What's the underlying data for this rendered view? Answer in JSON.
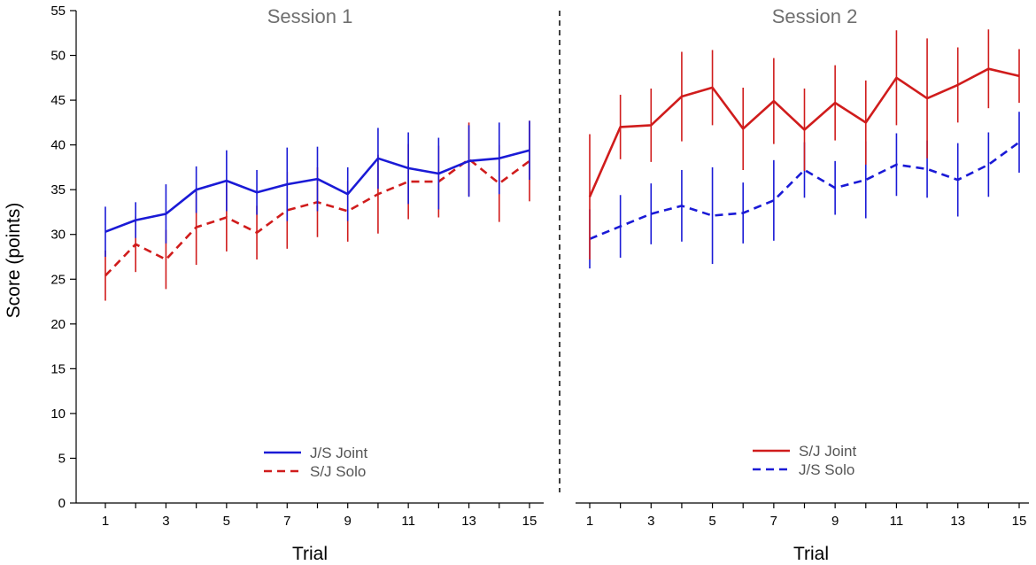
{
  "chart_data": {
    "type": "line",
    "ylabel": "Score (points)",
    "ylim": [
      0,
      55
    ],
    "yticks": [
      "0",
      "5",
      "10",
      "15",
      "20",
      "25",
      "30",
      "35",
      "40",
      "45",
      "50",
      "55"
    ],
    "xlim": [
      0.5,
      15.5
    ],
    "x": [
      1,
      2,
      3,
      4,
      5,
      6,
      7,
      8,
      9,
      10,
      11,
      12,
      13,
      14,
      15
    ],
    "xticks": [
      "1",
      "3",
      "5",
      "7",
      "9",
      "11",
      "13",
      "15"
    ],
    "colors": {
      "red": "#d01c1c",
      "blue": "#1a1ad6",
      "divider": "#000000"
    },
    "panels": [
      {
        "title": "Session 1",
        "xlabel": "Trial",
        "legend": [
          {
            "label": "J/S Joint",
            "style": "solid",
            "color": "blue"
          },
          {
            "label": "S/J Solo",
            "style": "dashed",
            "color": "red"
          }
        ],
        "series": [
          {
            "name": "S/J Solo",
            "color": "red",
            "dashed": true,
            "values": [
              25.4,
              28.9,
              27.2,
              30.8,
              31.9,
              30.2,
              32.7,
              33.6,
              32.6,
              34.5,
              35.9,
              35.9,
              38.4,
              35.7,
              38.2
            ],
            "errors": [
              2.8,
              3.1,
              3.3,
              4.2,
              3.8,
              3.0,
              4.3,
              3.9,
              3.4,
              4.4,
              4.2,
              4.0,
              4.1,
              4.3,
              4.5
            ]
          },
          {
            "name": "J/S Joint",
            "color": "blue",
            "dashed": false,
            "values": [
              30.3,
              31.6,
              32.3,
              35.0,
              36.0,
              34.7,
              35.6,
              36.2,
              34.5,
              38.5,
              37.4,
              36.8,
              38.2,
              38.5,
              39.4
            ],
            "errors": [
              2.8,
              2.0,
              3.3,
              2.6,
              3.4,
              2.5,
              4.1,
              3.6,
              3.0,
              3.4,
              4.0,
              4.0,
              4.0,
              4.0,
              3.3
            ]
          }
        ]
      },
      {
        "title": "Session 2",
        "xlabel": "Trial",
        "legend": [
          {
            "label": "S/J Joint",
            "style": "solid",
            "color": "red"
          },
          {
            "label": "J/S Solo",
            "style": "dashed",
            "color": "blue"
          }
        ],
        "series": [
          {
            "name": "J/S Solo",
            "color": "blue",
            "dashed": true,
            "values": [
              29.5,
              30.9,
              32.3,
              33.2,
              32.1,
              32.4,
              33.8,
              37.2,
              35.2,
              36.1,
              37.8,
              37.3,
              36.1,
              37.8,
              40.3
            ],
            "errors": [
              3.3,
              3.5,
              3.4,
              4.0,
              5.4,
              3.4,
              4.5,
              3.1,
              3.0,
              4.3,
              3.5,
              3.2,
              4.1,
              3.6,
              3.4
            ]
          },
          {
            "name": "S/J Joint",
            "color": "red",
            "dashed": false,
            "values": [
              34.2,
              42.0,
              42.2,
              45.4,
              46.4,
              41.8,
              44.9,
              41.7,
              44.7,
              42.5,
              47.5,
              45.2,
              46.7,
              48.5,
              47.7
            ],
            "errors": [
              7.0,
              3.6,
              4.1,
              5.0,
              4.2,
              4.6,
              4.8,
              4.6,
              4.2,
              4.7,
              5.3,
              6.7,
              4.2,
              4.4,
              3.0
            ]
          }
        ]
      }
    ]
  }
}
